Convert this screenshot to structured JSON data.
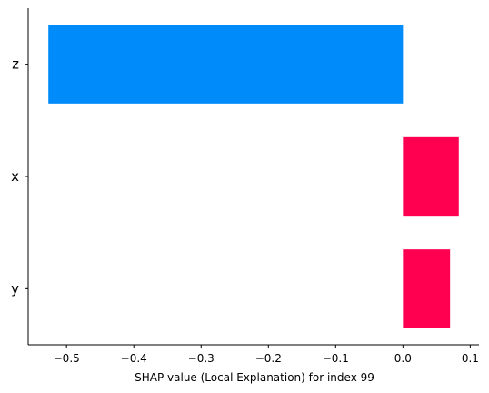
{
  "chart_data": {
    "type": "bar",
    "orientation": "horizontal",
    "title": "",
    "xlabel": "SHAP value (Local Explanation) for index 99",
    "ylabel": "",
    "categories": [
      "z",
      "x",
      "y"
    ],
    "values": [
      -0.527,
      0.083,
      0.07
    ],
    "xlim": [
      -0.557,
      0.113
    ],
    "x_ticks": [
      -0.5,
      -0.4,
      -0.3,
      -0.2,
      -0.1,
      0.0,
      0.1
    ],
    "x_tick_labels": [
      "−0.5",
      "−0.4",
      "−0.3",
      "−0.2",
      "−0.1",
      "0.0",
      "0.1"
    ],
    "grid": false,
    "colors": {
      "negative": "#008bfb",
      "positive": "#ff0051",
      "axis": "#000000"
    }
  }
}
